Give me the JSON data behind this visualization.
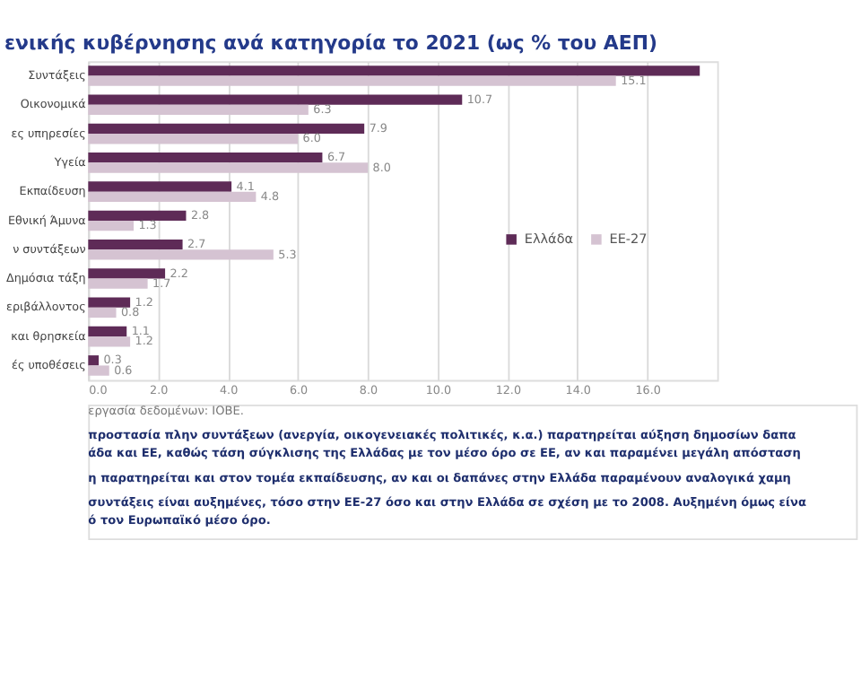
{
  "chart_data": {
    "type": "bar",
    "orientation": "horizontal",
    "title": "ενικής κυβέρνησης ανά κατηγορία το 2021 (ως % του ΑΕΠ)",
    "categories": [
      "Συντάξεις",
      "Οικονομικά",
      "ες υπηρεσίες",
      "Υγεία",
      "Εκπαίδευση",
      "Εθνική Άμυνα",
      "ν συντάξεων",
      "Δημόσια τάξη",
      "εριβάλλοντος",
      "και θρησκεία",
      "ές υποθέσεις"
    ],
    "series": [
      {
        "name": "Ελλάδα",
        "color": "#5e2b57",
        "values": [
          17.5,
          10.7,
          7.9,
          6.7,
          4.1,
          2.8,
          2.7,
          2.2,
          1.2,
          1.1,
          0.3
        ],
        "value_labels": [
          null,
          "10.7",
          "7.9",
          "6.7",
          "4.1",
          "2.8",
          "2.7",
          "2.2",
          "1.2",
          "1.1",
          "0.3"
        ]
      },
      {
        "name": "ΕΕ-27",
        "color": "#d5c3d2",
        "values": [
          15.1,
          6.3,
          6.0,
          8.0,
          4.8,
          1.3,
          5.3,
          1.7,
          0.8,
          1.2,
          0.6
        ],
        "value_labels": [
          "15.1",
          "6.3",
          "6.0",
          "8.0",
          "4.8",
          "1.3",
          "5.3",
          "1.7",
          "0.8",
          "1.2",
          "0.6"
        ]
      }
    ],
    "xlim": [
      0,
      18
    ],
    "xticks": [
      {
        "value": 0,
        "label": "0.0"
      },
      {
        "value": 2,
        "label": "2.0"
      },
      {
        "value": 4,
        "label": "4.0"
      },
      {
        "value": 6,
        "label": "6.0"
      },
      {
        "value": 8,
        "label": "8.0"
      },
      {
        "value": 10,
        "label": "10.0"
      },
      {
        "value": 12,
        "label": "12.0"
      },
      {
        "value": 14,
        "label": "14.0"
      },
      {
        "value": 16,
        "label": "16.0"
      }
    ],
    "grid": "x",
    "legend": "right",
    "annotations": [
      "εργασία δεδομένων: ΙΟΒΕ.",
      "προστασία πλην συντάξεων (ανεργία, οικογενειακές πολιτικές, κ.α.) παρατηρείται αύξηση δημοσίων δαπα\nάδα και ΕΕ, καθώς τάση σύγκλισης της Ελλάδας με τον μέσο όρο σε ΕΕ, αν και παραμένει μεγάλη απόσταση",
      "η παρατηρείται και στον τομέα εκπαίδευσης, αν και οι δαπάνες στην Ελλάδα παραμένουν αναλογικά χαμη",
      "συντάξεις είναι αυξημένες, τόσο στην ΕΕ-27 όσο και στην Ελλάδα σε σχέση με το 2008. Αυξημένη όμως είνα\nό τον Ευρωπαϊκό μέσο όρο."
    ]
  }
}
